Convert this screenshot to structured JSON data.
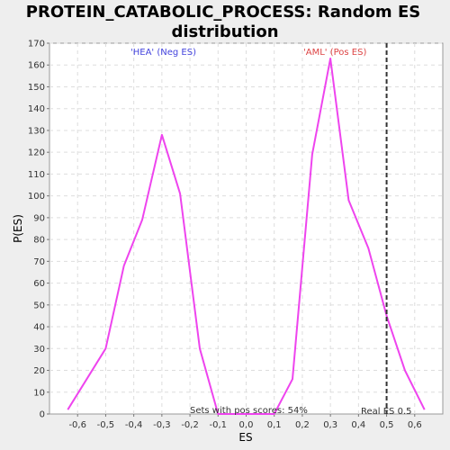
{
  "chart_data": {
    "type": "line",
    "title_line1": "PROTEIN_CATABOLIC_PROCESS: Random ES",
    "title_line2": "distribution",
    "xlabel": "ES",
    "ylabel": "P(ES)",
    "xlim": [
      -0.7,
      0.7
    ],
    "ylim": [
      0,
      170
    ],
    "x_ticks": [
      -0.6,
      -0.5,
      -0.4,
      -0.3,
      -0.2,
      -0.1,
      0.0,
      0.1,
      0.2,
      0.3,
      0.4,
      0.5,
      0.6
    ],
    "x_tick_labels": [
      "-0,6",
      "-0,5",
      "-0,4",
      "-0,3",
      "-0,2",
      "-0,1",
      "0,0",
      "0,1",
      "0,2",
      "0,3",
      "0,4",
      "0,5",
      "0,6"
    ],
    "y_ticks": [
      0,
      10,
      20,
      30,
      40,
      50,
      60,
      70,
      80,
      90,
      100,
      110,
      120,
      130,
      140,
      150,
      160,
      170
    ],
    "grid": true,
    "series": [
      {
        "color": "#ee44ee",
        "x": [
          -0.635,
          -0.5,
          -0.435,
          -0.37,
          -0.3,
          -0.235,
          -0.165,
          -0.1,
          0.1,
          0.165,
          0.235,
          0.3,
          0.365,
          0.435,
          0.5,
          0.565,
          0.635
        ],
        "y": [
          2,
          30,
          68,
          89,
          128,
          101,
          30,
          0,
          0,
          16,
          119,
          163,
          98,
          76,
          45,
          20,
          2
        ]
      }
    ],
    "annotations": {
      "neg_label": "'HEA' (Neg ES)",
      "pos_label": "'AML' (Pos ES)",
      "sets_text": "Sets with pos scores: 54%",
      "real_es_text": "Real ES 0.5",
      "real_es_value": 0.5,
      "neg_color": "#4444dd",
      "pos_color": "#dd4444"
    }
  }
}
